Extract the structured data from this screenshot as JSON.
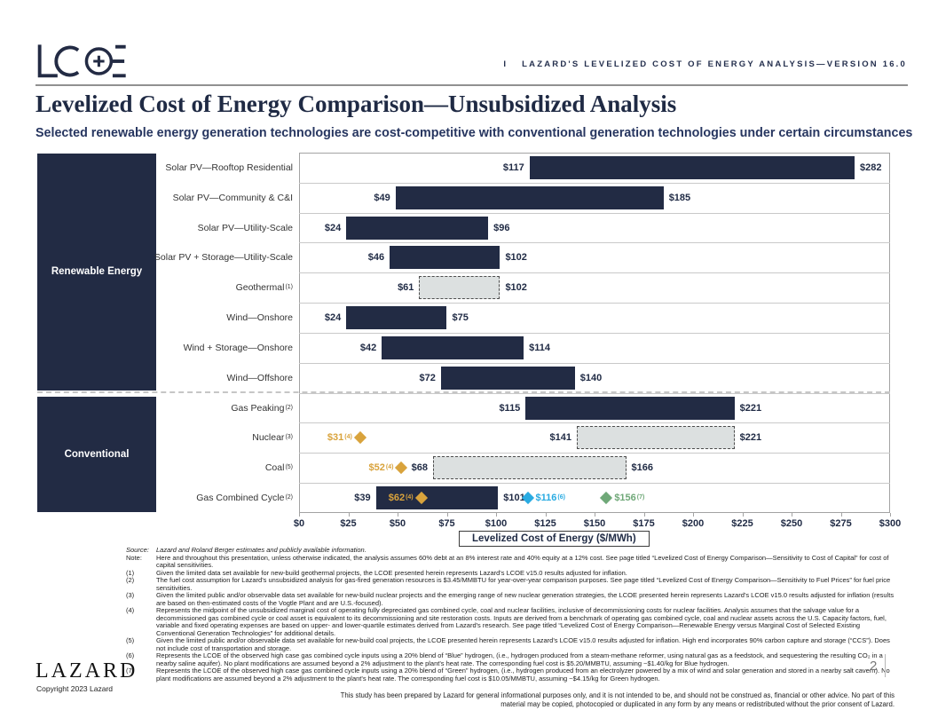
{
  "header": {
    "separator": "I",
    "title": "LAZARD'S LEVELIZED COST OF ENERGY ANALYSIS—VERSION 16.0"
  },
  "page": {
    "title": "Levelized Cost of Energy Comparison—Unsubsidized Analysis",
    "subtitle": "Selected renewable energy generation technologies are cost-competitive with conventional generation technologies under certain circumstances"
  },
  "colors": {
    "navy": "#222B44",
    "gold": "#D9A33C",
    "blue": "#29ABE2",
    "green": "#6FA878",
    "bar_gray_fill": "#DCE0E0",
    "grid": "#C9C9C9"
  },
  "chart_data": {
    "type": "bar",
    "subtype": "horizontal-range",
    "unit": "$/MWh",
    "xlabel": "Levelized Cost of Energy ($/MWh)",
    "xlim": [
      0,
      300
    ],
    "x_tick_step": 25,
    "x_ticks": [
      "$0",
      "$25",
      "$50",
      "$75",
      "$100",
      "$125",
      "$150",
      "$175",
      "$200",
      "$225",
      "$250",
      "$275",
      "$300"
    ],
    "grid": "row-separators-only",
    "groups": [
      {
        "label": "Renewable Energy",
        "row_start": 0,
        "row_count": 8
      },
      {
        "label": "Conventional",
        "row_start": 8,
        "row_count": 4
      }
    ],
    "rows": [
      {
        "label": "Solar PV—Rooftop Residential",
        "sup": "",
        "low": 117,
        "high": 282,
        "bar": "solid"
      },
      {
        "label": "Solar PV—Community & C&I",
        "sup": "",
        "low": 49,
        "high": 185,
        "bar": "solid"
      },
      {
        "label": "Solar PV—Utility-Scale",
        "sup": "",
        "low": 24,
        "high": 96,
        "bar": "solid"
      },
      {
        "label": "Solar PV + Storage—Utility-Scale",
        "sup": "",
        "low": 46,
        "high": 102,
        "bar": "solid"
      },
      {
        "label": "Geothermal",
        "sup": "(1)",
        "low": 61,
        "high": 102,
        "bar": "dashed"
      },
      {
        "label": "Wind—Onshore",
        "sup": "",
        "low": 24,
        "high": 75,
        "bar": "solid"
      },
      {
        "label": "Wind + Storage—Onshore",
        "sup": "",
        "low": 42,
        "high": 114,
        "bar": "solid"
      },
      {
        "label": "Wind—Offshore",
        "sup": "",
        "low": 72,
        "high": 140,
        "bar": "solid"
      },
      {
        "label": "Gas Peaking",
        "sup": "(2)",
        "low": 115,
        "high": 221,
        "bar": "solid"
      },
      {
        "label": "Nuclear",
        "sup": "(3)",
        "low": 141,
        "high": 221,
        "bar": "dashed",
        "markers": [
          {
            "value": 31,
            "text": "$31",
            "sup": "(4)",
            "color": "gold",
            "side": "left"
          }
        ]
      },
      {
        "label": "Coal",
        "sup": "(5)",
        "low": 68,
        "high": 166,
        "bar": "dashed",
        "markers": [
          {
            "value": 52,
            "text": "$52",
            "sup": "(4)",
            "color": "gold",
            "side": "left"
          }
        ]
      },
      {
        "label": "Gas Combined Cycle",
        "sup": "(2)",
        "low": 39,
        "high": 101,
        "bar": "solid",
        "markers": [
          {
            "value": 62,
            "text": "$62",
            "sup": "(4)",
            "color": "gold",
            "side": "left"
          },
          {
            "value": 116,
            "text": "$116",
            "sup": "(6)",
            "color": "blue",
            "side": "right"
          },
          {
            "value": 156,
            "text": "$156",
            "sup": "(7)",
            "color": "green",
            "side": "right"
          }
        ]
      }
    ]
  },
  "footnotes": [
    {
      "label": "Source:",
      "italic": true,
      "text": "Lazard and Roland Berger estimates and publicly available information."
    },
    {
      "label": "Note:",
      "text": "Here and throughout this presentation, unless otherwise indicated, the analysis assumes 60% debt at an 8% interest rate and 40% equity at a 12% cost. See page titled “Levelized Cost of Energy Comparison—Sensitivity to Cost of Capital” for cost of capital sensitivities."
    },
    {
      "label": "(1)",
      "text": "Given the limited data set available for new-build geothermal projects, the LCOE presented herein represents Lazard's LCOE v15.0 results adjusted for inflation."
    },
    {
      "label": "(2)",
      "text": "The fuel cost assumption for Lazard's unsubsidized analysis for gas-fired generation resources is $3.45/MMBTU for year-over-year comparison purposes. See page titled “Levelized Cost of Energy Comparison—Sensitivity to Fuel Prices” for fuel price sensitivities."
    },
    {
      "label": "(3)",
      "text": "Given the limited public and/or observable data set available for new-build nuclear projects and the emerging range of new nuclear generation strategies, the LCOE presented herein represents Lazard's LCOE v15.0 results adjusted for inflation (results are based on then-estimated costs of the Vogtle Plant and are U.S.-focused)."
    },
    {
      "label": "(4)",
      "text": "Represents the midpoint of the unsubsidized marginal cost of operating fully depreciated gas combined cycle, coal and nuclear facilities, inclusive of decommissioning costs for nuclear facilities. Analysis assumes that the salvage value for a decommissioned gas combined cycle or coal asset is equivalent to its decommissioning and site restoration costs. Inputs are derived from a benchmark of operating gas combined cycle, coal and nuclear assets across the U.S. Capacity factors, fuel, variable and fixed operating expenses are based on upper- and lower-quartile estimates derived from Lazard's research. See page titled “Levelized Cost of Energy Comparison—Renewable Energy versus Marginal Cost of Selected Existing Conventional Generation Technologies” for additional details."
    },
    {
      "label": "(5)",
      "text": "Given the limited public and/or observable data set available for new-build coal projects, the LCOE presented herein represents Lazard's LCOE v15.0 results adjusted for inflation. High end incorporates 90% carbon capture and storage (“CCS”). Does not include cost of transportation and storage."
    },
    {
      "label": "(6)",
      "text": "Represents the LCOE of the observed high case gas combined cycle inputs using a 20% blend of “Blue” hydrogen, (i.e., hydrogen produced from a steam-methane reformer, using natural gas as a feedstock, and sequestering the resulting CO₂ in a nearby saline aquifer). No plant modifications are assumed beyond a 2% adjustment to the plant's heat rate. The corresponding fuel cost is $5.20/MMBTU, assuming ~$1.40/kg for Blue hydrogen."
    },
    {
      "label": "(7)",
      "text": "Represents the LCOE of the observed high case gas combined cycle inputs using a 20% blend of “Green” hydrogen, (i.e., hydrogen produced from an electrolyzer powered by a mix of wind and solar generation and stored in a nearby salt cavern). No plant modifications are assumed beyond a 2% adjustment to the plant's heat rate. The corresponding fuel cost is $10.05/MMBTU, assuming ~$4.15/kg for Green hydrogen."
    }
  ],
  "footer": {
    "brand": "LAZARD",
    "copyright": "Copyright 2023 Lazard",
    "page_number": "2",
    "disclaimer": "This study has been prepared by Lazard for general informational purposes only, and it is not intended to be, and should not be construed as, financial or other advice. No part of this material may be copied, photocopied or duplicated in any form by any means or redistributed without the prior consent of Lazard."
  }
}
